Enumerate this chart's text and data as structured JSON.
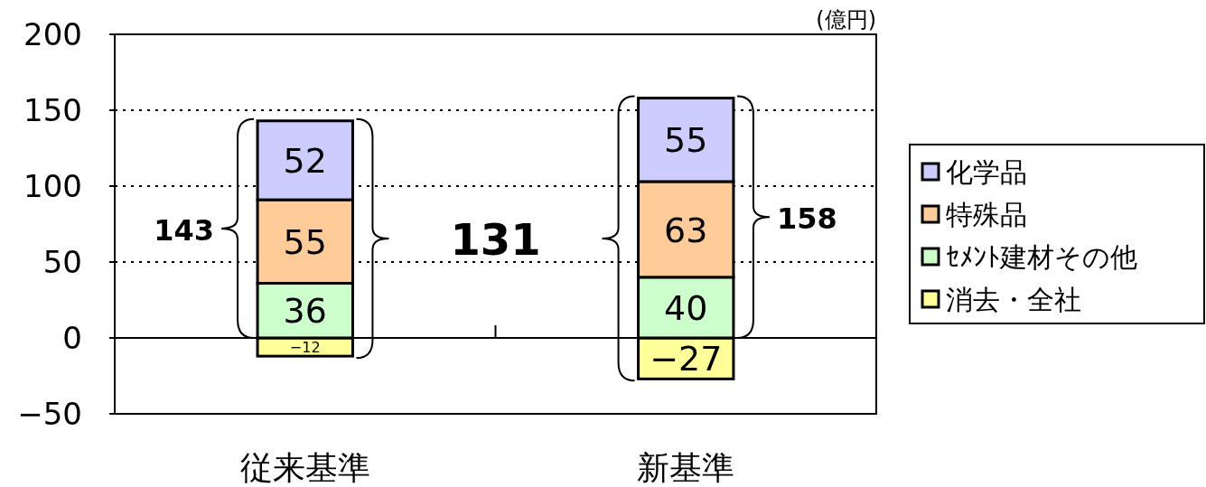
{
  "chart_data": {
    "type": "bar",
    "stacked": true,
    "categories": [
      "従来基準",
      "新基準"
    ],
    "series": [
      {
        "name": "消去・全社",
        "color": "#ffff99",
        "values": [
          -12,
          -27
        ]
      },
      {
        "name": "ｾﾒﾝﾄ建材その他",
        "color": "#ccffcc",
        "values": [
          36,
          40
        ]
      },
      {
        "name": "特殊品",
        "color": "#ffcc99",
        "values": [
          55,
          63
        ]
      },
      {
        "name": "化学品",
        "color": "#ccccff",
        "values": [
          52,
          55
        ]
      }
    ],
    "ylim": [
      -50,
      200
    ],
    "yticks": [
      {
        "value": -50,
        "label": "−50"
      },
      0,
      50,
      100,
      150,
      200
    ],
    "grid": "y",
    "legend": "right",
    "data_labels": true,
    "annotations": [
      "(億円)",
      "143",
      "131",
      "158"
    ]
  }
}
